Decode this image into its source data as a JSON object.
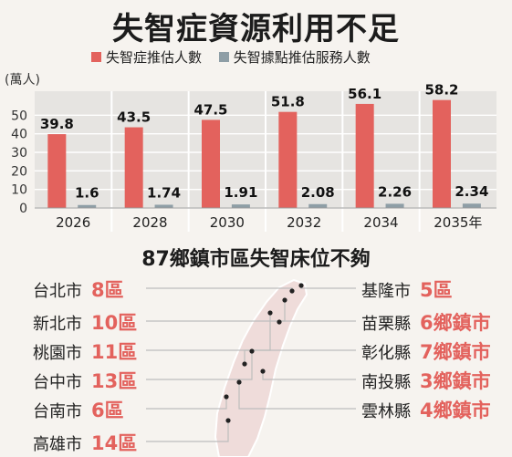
{
  "title": "失智症資源利用不足",
  "legend": [
    {
      "label": "失智症推估人數",
      "color": "#e3625d"
    },
    {
      "label": "失智據點推估服務人數",
      "color": "#8e9ea6"
    }
  ],
  "chart_data": {
    "type": "bar",
    "title": "失智症資源利用不足",
    "ylabel": "(萬人)",
    "ylim": [
      0,
      60
    ],
    "yticks": [
      0,
      10,
      20,
      30,
      40,
      50
    ],
    "categories": [
      "2026",
      "2028",
      "2030",
      "2032",
      "2034",
      "2035年"
    ],
    "series": [
      {
        "name": "失智症推估人數",
        "color": "#e3625d",
        "values": [
          39.8,
          43.5,
          47.5,
          51.8,
          56.1,
          58.2
        ],
        "labels": [
          "39.8",
          "43.5",
          "47.5",
          "51.8",
          "56.1",
          "58.2"
        ]
      },
      {
        "name": "失智據點推估服務人數",
        "color": "#8e9ea6",
        "values": [
          1.6,
          1.74,
          1.91,
          2.08,
          2.26,
          2.34
        ],
        "labels": [
          "1.6",
          "1.74",
          "1.91",
          "2.08",
          "2.26",
          "2.34"
        ]
      }
    ],
    "grid": true
  },
  "section_title": "87鄉鎮市區失智床位不夠",
  "left_cities": [
    {
      "name": "台北市",
      "count": "8區"
    },
    {
      "name": "新北市",
      "count": "10區"
    },
    {
      "name": "桃園市",
      "count": "11區"
    },
    {
      "name": "台中市",
      "count": "13區"
    },
    {
      "name": "台南市",
      "count": "6區"
    },
    {
      "name": "高雄市",
      "count": "14區"
    }
  ],
  "right_cities": [
    {
      "name": "基隆市",
      "count": "5區"
    },
    {
      "name": "苗栗縣",
      "count": "6鄉鎮市"
    },
    {
      "name": "彰化縣",
      "count": "7鄉鎮市"
    },
    {
      "name": "南投縣",
      "count": "3鄉鎮市"
    },
    {
      "name": "雲林縣",
      "count": "4鄉鎮市"
    }
  ]
}
